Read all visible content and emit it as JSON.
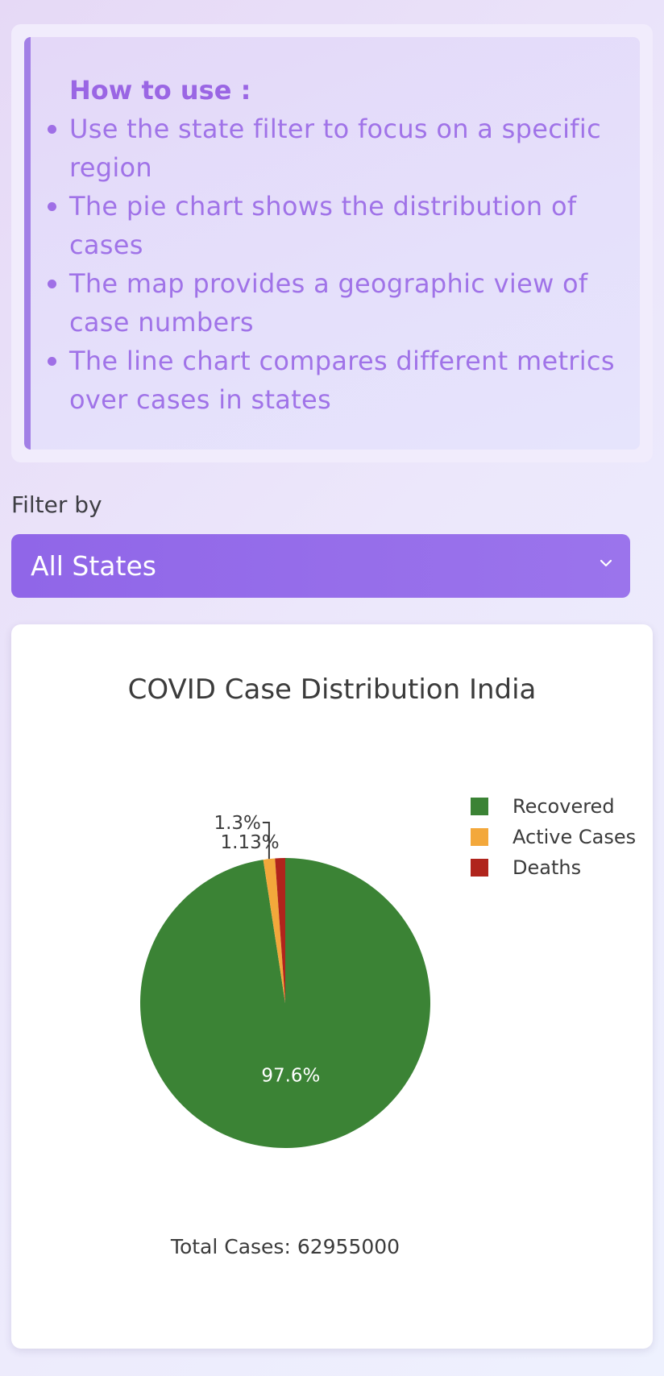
{
  "help": {
    "title": "How to use :",
    "items": [
      "Use the state filter to focus on a specific region",
      "The pie chart shows the distribution of cases",
      "The map provides a geographic view of case numbers",
      "The line chart compares different metrics over cases in states"
    ]
  },
  "filter": {
    "label": "Filter by",
    "selected": "All States"
  },
  "chart_data": {
    "type": "pie",
    "title": "COVID Case Distribution India",
    "categories": [
      "Recovered",
      "Active Cases",
      "Deaths"
    ],
    "values": [
      97.6,
      1.3,
      1.13
    ],
    "labels": [
      "97.6%",
      "1.3%",
      "1.13%"
    ],
    "colors": [
      "#3b8335",
      "#f3a83b",
      "#b0241c"
    ],
    "legend_position": "top-right",
    "annotation": "Total Cases: 62955000"
  },
  "icons": {
    "dropdown": "chevron-down-icon"
  }
}
